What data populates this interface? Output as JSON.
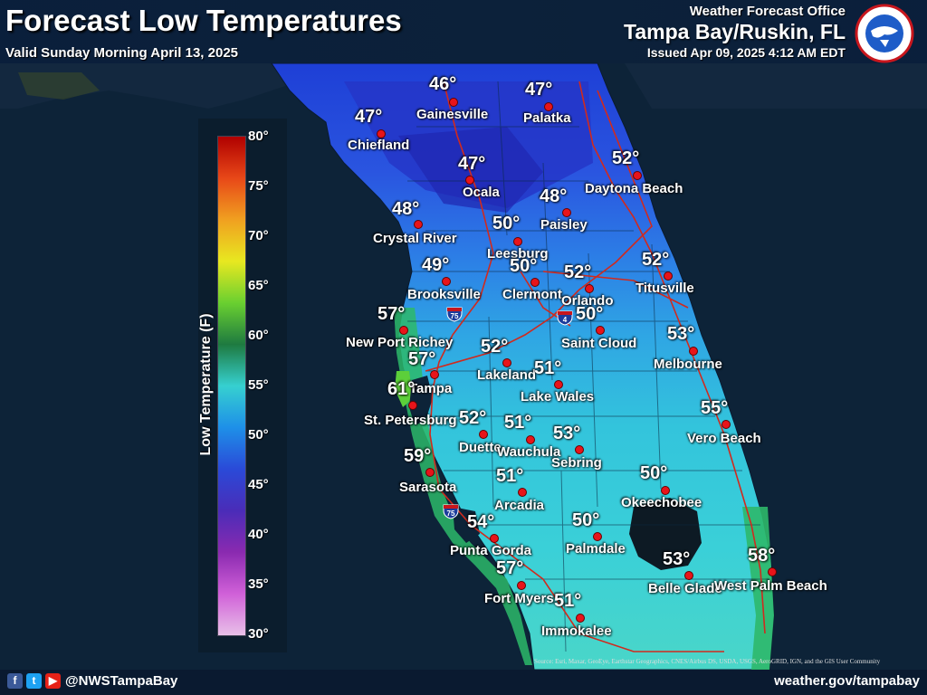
{
  "header": {
    "title": "Forecast Low Temperatures",
    "valid": "Valid Sunday Morning April 13, 2025",
    "office_line1": "Weather Forecast Office",
    "office_line2": "Tampa Bay/Ruskin, FL",
    "issued": "Issued Apr 09, 2025 4:12 AM EDT"
  },
  "logo": {
    "text": "NATIONAL WEATHER SERVICE",
    "icon": "nws-logo-icon"
  },
  "legend": {
    "title": "Low Temperature (F)",
    "min": 30,
    "max": 80,
    "ticks": [
      "80°",
      "75°",
      "70°",
      "65°",
      "60°",
      "55°",
      "50°",
      "45°",
      "40°",
      "35°",
      "30°"
    ]
  },
  "colors": {
    "ocean": "#0d2338",
    "marker": "#e8141a",
    "ramp": [
      "#e8c0e8",
      "#d060d8",
      "#8a2ab0",
      "#4a2cb8",
      "#2a4ad8",
      "#1e90e8",
      "#36d0d0",
      "#1e7a40",
      "#6ad030",
      "#e8e820",
      "#f0a020",
      "#e84818",
      "#b00000"
    ]
  },
  "cities": [
    {
      "name": "Gainesville",
      "temp": "46°"
    },
    {
      "name": "Palatka",
      "temp": "47°"
    },
    {
      "name": "Chiefland",
      "temp": "47°"
    },
    {
      "name": "Ocala",
      "temp": "47°"
    },
    {
      "name": "Daytona Beach",
      "temp": "52°"
    },
    {
      "name": "Paisley",
      "temp": "48°"
    },
    {
      "name": "Crystal River",
      "temp": "48°"
    },
    {
      "name": "Leesburg",
      "temp": "50°"
    },
    {
      "name": "Clermont",
      "temp": "50°"
    },
    {
      "name": "Orlando",
      "temp": "52°"
    },
    {
      "name": "Titusville",
      "temp": "52°"
    },
    {
      "name": "Brooksville",
      "temp": "49°"
    },
    {
      "name": "Saint Cloud",
      "temp": "50°"
    },
    {
      "name": "New Port Richey",
      "temp": "57°"
    },
    {
      "name": "Melbourne",
      "temp": "53°"
    },
    {
      "name": "Tampa",
      "temp": "57°"
    },
    {
      "name": "Lakeland",
      "temp": "52°"
    },
    {
      "name": "Lake Wales",
      "temp": "51°"
    },
    {
      "name": "St. Petersburg",
      "temp": "61°"
    },
    {
      "name": "Vero Beach",
      "temp": "55°"
    },
    {
      "name": "Duette",
      "temp": "52°"
    },
    {
      "name": "Wauchula",
      "temp": "51°"
    },
    {
      "name": "Sebring",
      "temp": "53°"
    },
    {
      "name": "Sarasota",
      "temp": "59°"
    },
    {
      "name": "Arcadia",
      "temp": "51°"
    },
    {
      "name": "Okeechobee",
      "temp": "50°"
    },
    {
      "name": "Punta Gorda",
      "temp": "54°"
    },
    {
      "name": "Palmdale",
      "temp": "50°"
    },
    {
      "name": "Fort Myers",
      "temp": "57°"
    },
    {
      "name": "Belle Glade",
      "temp": "53°"
    },
    {
      "name": "West Palm Beach",
      "temp": "58°"
    },
    {
      "name": "Immokalee",
      "temp": "51°"
    }
  ],
  "highways": [
    {
      "name": "I-75",
      "label": "75"
    },
    {
      "name": "I-4",
      "label": "4"
    },
    {
      "name": "I-75 south",
      "label": "75"
    }
  ],
  "footer": {
    "handle": "@NWSTampaBay",
    "website": "weather.gov/tampabay",
    "source": "Source: Esri, Maxar, GeoEye, Earthstar Geographics, CNES/Airbus DS, USDA, USGS, AeroGRID, IGN, and the GIS User Community",
    "social": [
      {
        "name": "facebook-icon",
        "glyph": "f",
        "color": "#3b5998"
      },
      {
        "name": "twitter-icon",
        "glyph": "t",
        "color": "#1da1f2"
      },
      {
        "name": "youtube-icon",
        "glyph": "▶",
        "color": "#e62117"
      }
    ]
  }
}
